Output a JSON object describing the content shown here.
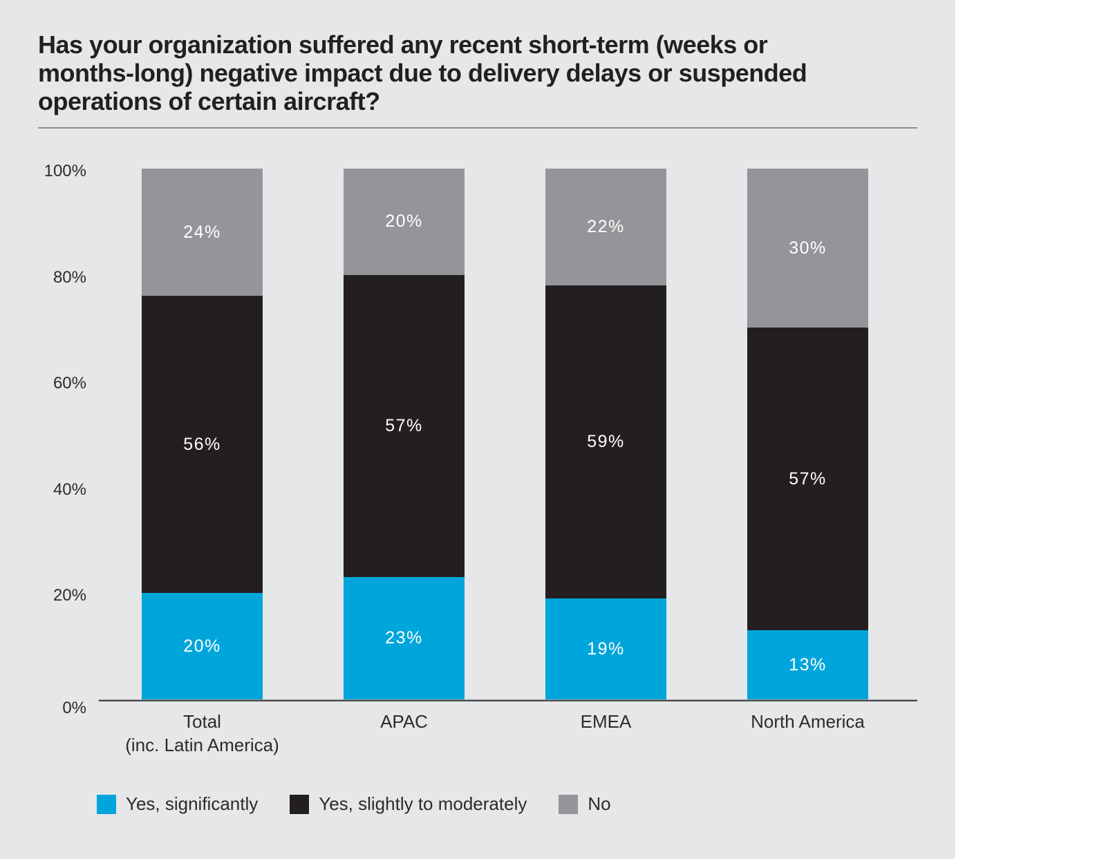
{
  "page": {
    "background_color": "#e6e7e8",
    "title": "Has your organization suffered any recent short-term (weeks or months-long) negative impact due to delivery delays or suspended operations of certain aircraft?",
    "title_lines": [
      "Has your organization suffered any recent short-term (weeks or",
      "months-long) negative impact due to delivery delays or suspended",
      "operations of certain aircraft?"
    ]
  },
  "chart_data": {
    "type": "bar",
    "stacked": true,
    "title": "Has your organization suffered any recent short-term (weeks or months-long) negative impact due to delivery delays or suspended operations of certain aircraft?",
    "categories": [
      "Total (inc. Latin America)",
      "APAC",
      "EMEA",
      "North America"
    ],
    "category_lines": [
      [
        "Total",
        "(inc. Latin America)"
      ],
      [
        "APAC"
      ],
      [
        "EMEA"
      ],
      [
        "North America"
      ]
    ],
    "series": [
      {
        "name": "Yes, significantly",
        "color": "#00a6db",
        "values": [
          20,
          23,
          19,
          13
        ]
      },
      {
        "name": "Yes, slightly to moderately",
        "color": "#231f20",
        "values": [
          56,
          57,
          59,
          57
        ]
      },
      {
        "name": "No",
        "color": "#939598",
        "values": [
          24,
          20,
          22,
          30
        ]
      }
    ],
    "value_suffix": "%",
    "y_axis": {
      "ticks": [
        0,
        20,
        40,
        60,
        80,
        100
      ],
      "tick_labels": [
        "0%",
        "20%",
        "40%",
        "60%",
        "80%",
        "100%"
      ],
      "ylim": [
        0,
        100
      ]
    },
    "grid": false,
    "legend_position": "bottom",
    "legend": [
      "Yes, significantly",
      "Yes, slightly to moderately",
      "No"
    ]
  }
}
